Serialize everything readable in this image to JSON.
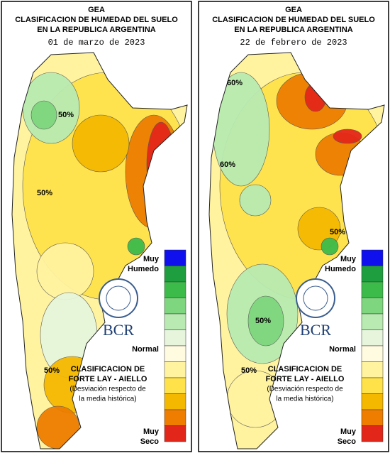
{
  "panels": [
    {
      "title": [
        "GEA",
        "CLASIFICACION DE HUMEDAD DEL SUELO",
        "EN LA REPUBLICA ARGENTINA"
      ],
      "date": "01 de marzo de 2023",
      "contour_labels": [
        "50%",
        "50%",
        "50%"
      ]
    },
    {
      "title": [
        "GEA",
        "CLASIFICACION DE HUMEDAD DEL SUELO",
        "EN LA REPUBLICA ARGENTINA"
      ],
      "date": "22 de febrero de 2023",
      "contour_labels": [
        "60%",
        "60%",
        "50%",
        "50%",
        "50%"
      ]
    }
  ],
  "legend": {
    "wet": [
      "Muy",
      "Humedo"
    ],
    "normal": "Normal",
    "dry": [
      "Muy",
      "Seco"
    ],
    "colors": [
      "#1010ee",
      "#1e9e3e",
      "#3dbb4a",
      "#7ed67e",
      "#b9eab1",
      "#e6f5dc",
      "#fffbe0",
      "#fff3a0",
      "#ffe24a",
      "#f5b800",
      "#ee7d00",
      "#e3261a"
    ]
  },
  "logo": "BCR",
  "classification": [
    "CLASIFICACION DE",
    "FORTE LAY - AIELLO",
    "(Desviación respecto de",
    "la media histórica)"
  ]
}
